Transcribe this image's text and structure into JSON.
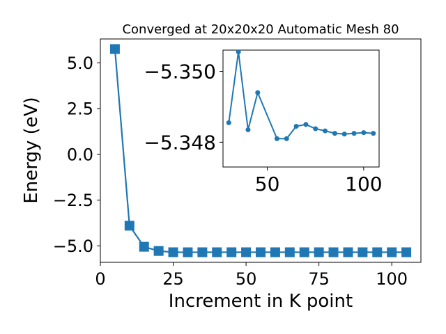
{
  "colors": {
    "series": "#1f77b4",
    "axis": "#000000",
    "background": "#ffffff"
  },
  "chart_data": [
    {
      "type": "line",
      "title": "Converged at 20x20x20 Automatic Mesh 80",
      "xlabel": "Increment in K point",
      "ylabel": "Energy (eV)",
      "xlim": [
        0,
        110
      ],
      "ylim": [
        -5.9,
        6.3
      ],
      "xticks": [
        0,
        25,
        50,
        75,
        100
      ],
      "xtick_labels": [
        "0",
        "25",
        "50",
        "75",
        "100"
      ],
      "yticks": [
        5.0,
        2.5,
        0.0,
        -2.5,
        -5.0
      ],
      "ytick_labels": [
        "5.0",
        "2.5",
        "0.0",
        "−2.5",
        "−5.0"
      ],
      "marker": "square",
      "grid": false,
      "x": [
        5,
        10,
        15,
        20,
        25,
        30,
        35,
        40,
        45,
        50,
        55,
        60,
        65,
        70,
        75,
        80,
        85,
        90,
        95,
        100,
        105
      ],
      "y": [
        5.75,
        -3.9,
        -5.05,
        -5.28,
        -5.3485,
        -5.3506,
        -5.3488,
        -5.3496,
        -5.3487,
        -5.3488,
        -5.3488,
        -5.3488,
        -5.3488,
        -5.3488,
        -5.3488,
        -5.3488,
        -5.3488,
        -5.3488,
        -5.3488,
        -5.3488,
        -5.3488
      ]
    },
    {
      "type": "line",
      "role": "inset",
      "xlim": [
        27,
        108
      ],
      "ylim": [
        -5.3506,
        -5.3473
      ],
      "y_inverted": true,
      "xticks": [
        50,
        100
      ],
      "xtick_labels": [
        "50",
        "100"
      ],
      "yticks": [
        -5.35,
        -5.348
      ],
      "ytick_labels": [
        "−5.350",
        "−5.348"
      ],
      "marker": "circle",
      "grid": false,
      "x": [
        30,
        35,
        40,
        45,
        55,
        60,
        65,
        70,
        75,
        80,
        85,
        90,
        95,
        100,
        105
      ],
      "y": [
        -5.34855,
        -5.35055,
        -5.34835,
        -5.3494,
        -5.3481,
        -5.3481,
        -5.34845,
        -5.3485,
        -5.34838,
        -5.34832,
        -5.34825,
        -5.34823,
        -5.34825,
        -5.34827,
        -5.34825
      ]
    }
  ]
}
